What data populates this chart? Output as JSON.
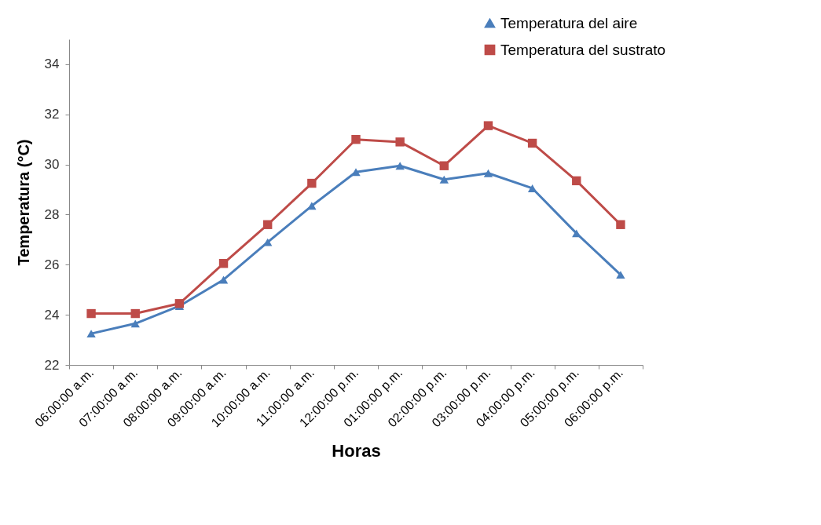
{
  "chart_data": {
    "type": "line",
    "xlabel": "Horas",
    "ylabel": "Temperatura (°C)",
    "categories": [
      "06:00:00 a.m.",
      "07:00:00 a.m.",
      "08:00:00 a.m.",
      "09:00:00 a.m.",
      "10:00:00 a.m.",
      "11:00:00 a.m.",
      "12:00:00 p.m.",
      "01:00:00 p.m.",
      "02:00:00 p.m.",
      "03:00:00 p.m.",
      "04:00:00 p.m.",
      "05:00:00 p.m.",
      "06:00:00 p.m."
    ],
    "series": [
      {
        "name": "Temperatura del aire",
        "color": "#4a7ebb",
        "marker": "triangle",
        "values": [
          23.25,
          23.65,
          24.35,
          25.4,
          26.9,
          28.35,
          29.7,
          29.95,
          29.4,
          29.65,
          29.05,
          27.25,
          25.6
        ]
      },
      {
        "name": "Temperatura del sustrato",
        "color": "#be4b48",
        "marker": "square",
        "values": [
          24.05,
          24.05,
          24.45,
          26.05,
          27.6,
          29.25,
          31.0,
          30.9,
          29.95,
          31.55,
          30.85,
          29.35,
          27.6
        ]
      }
    ],
    "ylim": [
      22,
      35
    ],
    "yticks": [
      22,
      24,
      26,
      28,
      30,
      32,
      34
    ],
    "grid": false,
    "legend": "top right"
  }
}
